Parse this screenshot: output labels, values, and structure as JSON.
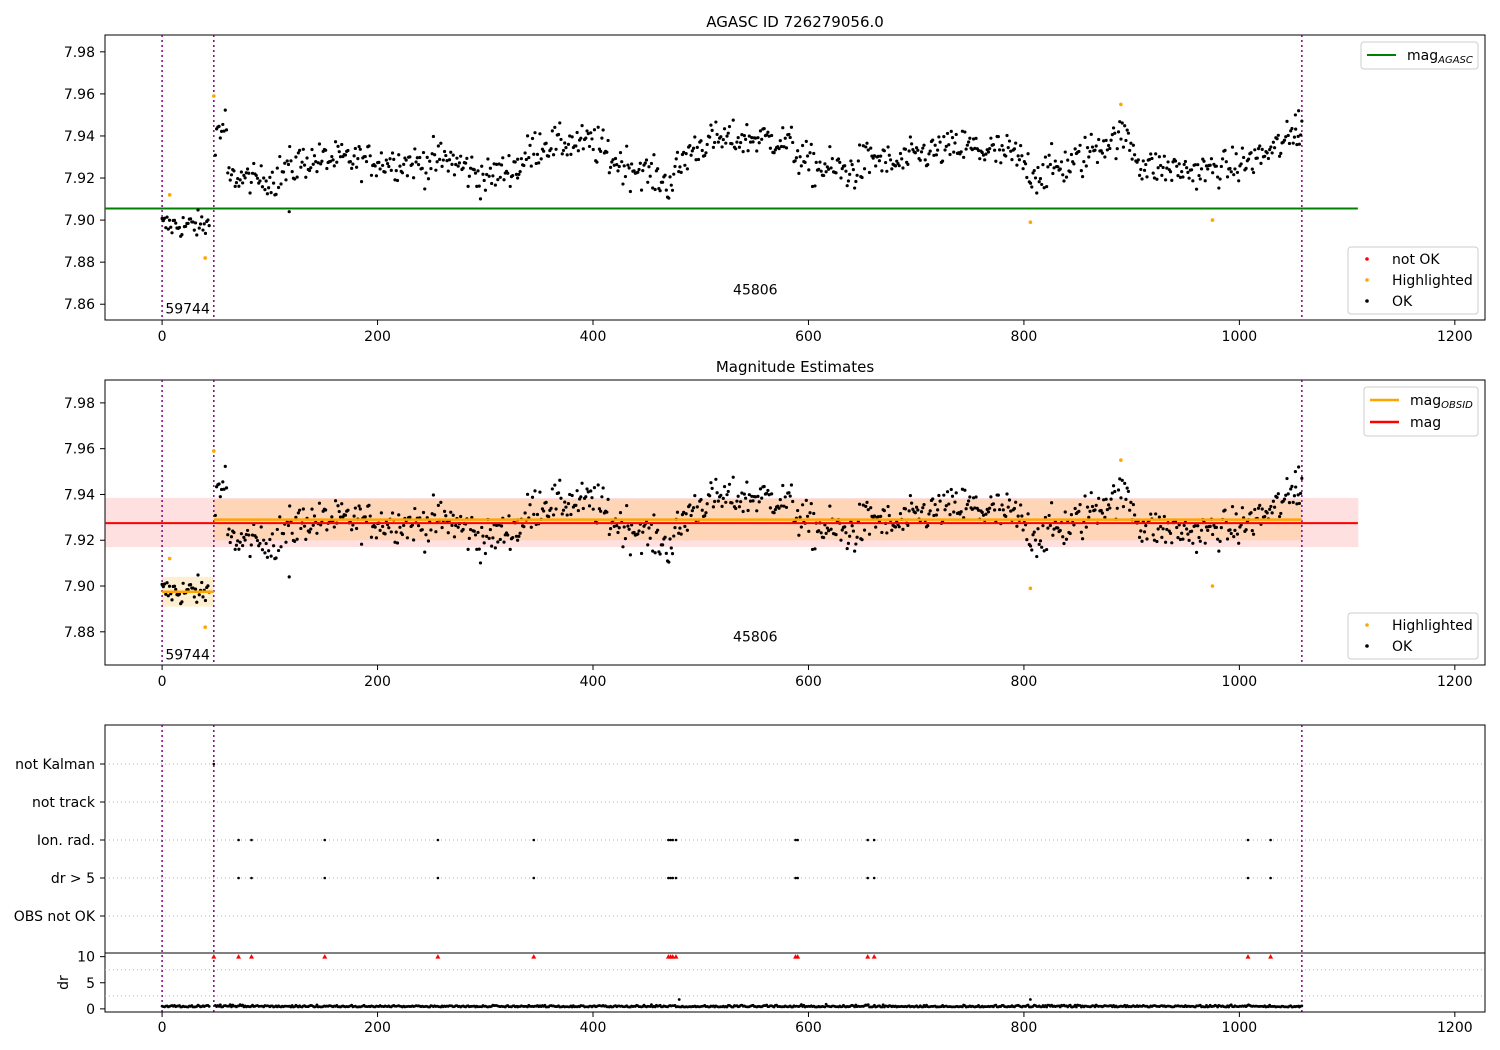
{
  "chart_data": [
    {
      "type": "scatter",
      "title": "AGASC ID 726279056.0",
      "xlabel": "",
      "ylabel": "",
      "xlim": [
        -53,
        1228
      ],
      "ylim": [
        7.8525,
        7.988
      ],
      "xticks": [
        0,
        200,
        400,
        600,
        800,
        1000,
        1200
      ],
      "yticks": [
        7.86,
        7.88,
        7.9,
        7.92,
        7.94,
        7.96,
        7.98
      ],
      "ytick_labels": [
        "7.86",
        "7.88",
        "7.90",
        "7.92",
        "7.94",
        "7.96",
        "7.98"
      ],
      "obsid_boundaries": [
        0,
        48,
        1058
      ],
      "obsid_labels": [
        {
          "text": "59744",
          "x": 3,
          "y": 7.858
        },
        {
          "text": "45806",
          "x": 530,
          "y": 7.867
        }
      ],
      "lines": [
        {
          "name": "mag_AGASC",
          "value": 7.9055,
          "x_range": [
            -53,
            1110
          ],
          "color": "#008000"
        }
      ],
      "highlighted_points": [
        {
          "x": 7,
          "y": 7.912
        },
        {
          "x": 40,
          "y": 7.882
        },
        {
          "x": 48,
          "y": 7.959
        },
        {
          "x": 806,
          "y": 7.899
        },
        {
          "x": 890,
          "y": 7.955
        },
        {
          "x": 975,
          "y": 7.9
        }
      ],
      "series_ok": "segments",
      "legend_lines": [
        {
          "label": "mag",
          "sub": "AGASC",
          "color": "#008000"
        }
      ],
      "legend_points": [
        {
          "label": "not OK",
          "color": "#ff0000"
        },
        {
          "label": "Highlighted",
          "color": "#ffa500"
        },
        {
          "label": "OK",
          "color": "#000000"
        }
      ]
    },
    {
      "type": "scatter",
      "title": "Magnitude Estimates",
      "xlabel": "",
      "ylabel": "",
      "xlim": [
        -53,
        1228
      ],
      "ylim": [
        7.8655,
        7.99
      ],
      "xticks": [
        0,
        200,
        400,
        600,
        800,
        1000,
        1200
      ],
      "yticks": [
        7.88,
        7.9,
        7.92,
        7.94,
        7.96,
        7.98
      ],
      "ytick_labels": [
        "7.88",
        "7.90",
        "7.92",
        "7.94",
        "7.96",
        "7.98"
      ],
      "obsid_boundaries": [
        0,
        48,
        1058
      ],
      "obsid_labels": [
        {
          "text": "59744",
          "x": 3,
          "y": 7.87
        },
        {
          "text": "45806",
          "x": 530,
          "y": 7.878
        }
      ],
      "mag": {
        "value": 7.9275,
        "band": [
          7.917,
          7.9385
        ],
        "x_range": [
          -53,
          1110
        ],
        "color": "#ff0000"
      },
      "mag_obsid": [
        {
          "x_range": [
            0,
            48
          ],
          "value": 7.8975,
          "band": [
            7.891,
            7.904
          ]
        },
        {
          "x_range": [
            48,
            1058
          ],
          "value": 7.929,
          "band": [
            7.92,
            7.938
          ]
        }
      ],
      "legend_lines": [
        {
          "label": "mag",
          "sub": "OBSID",
          "color": "#ffa500"
        },
        {
          "label": "mag",
          "sub": "",
          "color": "#ff0000"
        }
      ],
      "legend_points": [
        {
          "label": "Highlighted",
          "color": "#ffa500"
        },
        {
          "label": "OK",
          "color": "#000000"
        }
      ]
    },
    {
      "type": "scatter",
      "title": "",
      "xlim": [
        -53,
        1228
      ],
      "xticks": [
        0,
        200,
        400,
        600,
        800,
        1000,
        1200
      ],
      "categories": [
        "not Kalman",
        "not track",
        "Ion. rad.",
        "dr > 5",
        "OBS not OK"
      ],
      "flags": {
        "not Kalman": [
          48
        ],
        "not track": [],
        "Ion. rad.": [
          71,
          83,
          151,
          256,
          345,
          470,
          472,
          474,
          477,
          588,
          590,
          655,
          661,
          1008,
          1029
        ],
        "dr > 5": [
          71,
          83,
          151,
          256,
          345,
          470,
          472,
          474,
          477,
          588,
          590,
          655,
          661,
          1008,
          1029
        ],
        "OBS not OK": []
      },
      "dr": {
        "ylabel": "dr",
        "ylim": [
          -0.6,
          10.7
        ],
        "yticks": [
          0,
          5,
          10
        ],
        "ytick_labels": [
          "0",
          "5",
          "10"
        ],
        "clipped_markers": [
          48,
          71,
          83,
          151,
          256,
          345,
          470,
          472,
          474,
          477,
          588,
          590,
          655,
          661,
          1008,
          1029
        ],
        "outliers": [
          {
            "x": 480,
            "y": 1.8
          },
          {
            "x": 806,
            "y": 1.8
          }
        ]
      }
    }
  ]
}
